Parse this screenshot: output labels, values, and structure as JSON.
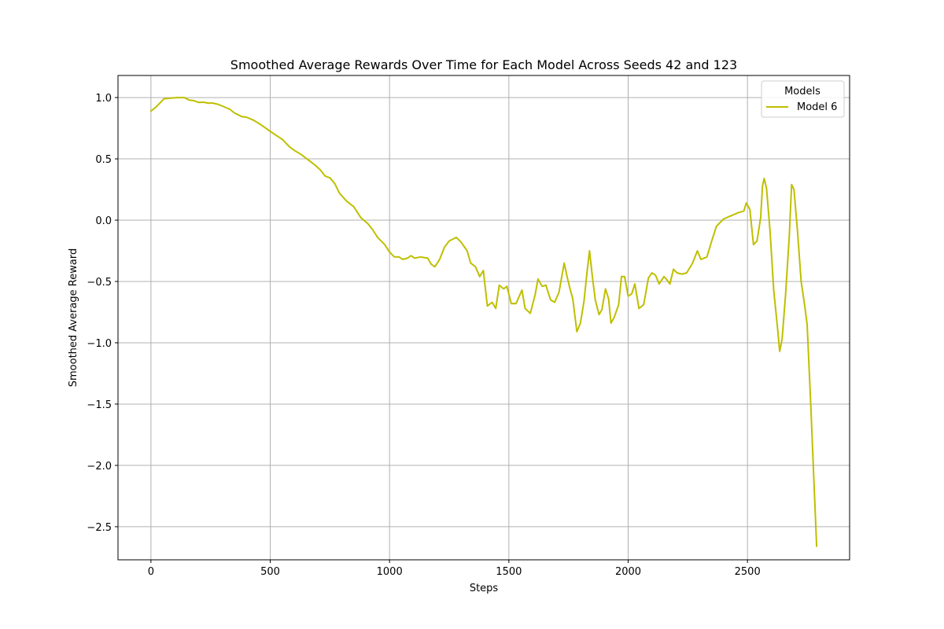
{
  "chart_data": {
    "type": "line",
    "title": "Smoothed Average Rewards Over Time for Each Model Across Seeds 42 and 123",
    "xlabel": "Steps",
    "ylabel": "Smoothed Average Reward",
    "xlim": [
      -138,
      2928
    ],
    "ylim": [
      -2.77,
      1.18
    ],
    "xticks": [
      0,
      500,
      1000,
      1500,
      2000,
      2500
    ],
    "xtick_labels": [
      "0",
      "500",
      "1000",
      "1500",
      "2000",
      "2500"
    ],
    "yticks": [
      1.0,
      0.5,
      0.0,
      -0.5,
      -1.0,
      -1.5,
      -2.0,
      -2.5
    ],
    "ytick_labels": [
      "1.0",
      "0.5",
      "0.0",
      "−0.5",
      "−1.0",
      "−1.5",
      "−2.0",
      "−2.5"
    ],
    "grid": true,
    "legend": {
      "title": "Models",
      "placement": "top-right"
    },
    "series": [
      {
        "name": "Model 6",
        "color": "#bfbf00",
        "points": [
          [
            0,
            0.89
          ],
          [
            20,
            0.92
          ],
          [
            40,
            0.96
          ],
          [
            55,
            0.99
          ],
          [
            80,
            0.995
          ],
          [
            110,
            1.0
          ],
          [
            140,
            1.0
          ],
          [
            160,
            0.98
          ],
          [
            180,
            0.975
          ],
          [
            200,
            0.96
          ],
          [
            220,
            0.962
          ],
          [
            240,
            0.955
          ],
          [
            260,
            0.955
          ],
          [
            280,
            0.945
          ],
          [
            300,
            0.93
          ],
          [
            330,
            0.905
          ],
          [
            350,
            0.875
          ],
          [
            380,
            0.845
          ],
          [
            400,
            0.84
          ],
          [
            430,
            0.815
          ],
          [
            460,
            0.78
          ],
          [
            500,
            0.725
          ],
          [
            530,
            0.685
          ],
          [
            550,
            0.66
          ],
          [
            580,
            0.6
          ],
          [
            600,
            0.57
          ],
          [
            630,
            0.535
          ],
          [
            660,
            0.49
          ],
          [
            690,
            0.445
          ],
          [
            710,
            0.41
          ],
          [
            730,
            0.36
          ],
          [
            750,
            0.345
          ],
          [
            770,
            0.3
          ],
          [
            790,
            0.22
          ],
          [
            820,
            0.155
          ],
          [
            850,
            0.11
          ],
          [
            880,
            0.02
          ],
          [
            910,
            -0.03
          ],
          [
            930,
            -0.08
          ],
          [
            950,
            -0.14
          ],
          [
            980,
            -0.2
          ],
          [
            1000,
            -0.26
          ],
          [
            1020,
            -0.3
          ],
          [
            1040,
            -0.3
          ],
          [
            1055,
            -0.32
          ],
          [
            1075,
            -0.31
          ],
          [
            1090,
            -0.29
          ],
          [
            1105,
            -0.31
          ],
          [
            1130,
            -0.3
          ],
          [
            1160,
            -0.31
          ],
          [
            1175,
            -0.36
          ],
          [
            1190,
            -0.38
          ],
          [
            1210,
            -0.32
          ],
          [
            1230,
            -0.22
          ],
          [
            1250,
            -0.17
          ],
          [
            1280,
            -0.14
          ],
          [
            1300,
            -0.18
          ],
          [
            1325,
            -0.25
          ],
          [
            1340,
            -0.35
          ],
          [
            1360,
            -0.38
          ],
          [
            1378,
            -0.46
          ],
          [
            1393,
            -0.41
          ],
          [
            1410,
            -0.7
          ],
          [
            1430,
            -0.67
          ],
          [
            1445,
            -0.72
          ],
          [
            1460,
            -0.53
          ],
          [
            1478,
            -0.56
          ],
          [
            1492,
            -0.54
          ],
          [
            1510,
            -0.68
          ],
          [
            1530,
            -0.68
          ],
          [
            1555,
            -0.57
          ],
          [
            1568,
            -0.72
          ],
          [
            1590,
            -0.76
          ],
          [
            1610,
            -0.61
          ],
          [
            1622,
            -0.48
          ],
          [
            1640,
            -0.54
          ],
          [
            1655,
            -0.53
          ],
          [
            1675,
            -0.65
          ],
          [
            1692,
            -0.67
          ],
          [
            1710,
            -0.59
          ],
          [
            1732,
            -0.35
          ],
          [
            1745,
            -0.47
          ],
          [
            1755,
            -0.55
          ],
          [
            1768,
            -0.64
          ],
          [
            1785,
            -0.91
          ],
          [
            1800,
            -0.84
          ],
          [
            1815,
            -0.66
          ],
          [
            1828,
            -0.42
          ],
          [
            1838,
            -0.25
          ],
          [
            1850,
            -0.46
          ],
          [
            1862,
            -0.65
          ],
          [
            1878,
            -0.77
          ],
          [
            1890,
            -0.73
          ],
          [
            1905,
            -0.56
          ],
          [
            1918,
            -0.64
          ],
          [
            1928,
            -0.84
          ],
          [
            1942,
            -0.79
          ],
          [
            1960,
            -0.69
          ],
          [
            1972,
            -0.46
          ],
          [
            1985,
            -0.46
          ],
          [
            2000,
            -0.62
          ],
          [
            2015,
            -0.6
          ],
          [
            2028,
            -0.52
          ],
          [
            2045,
            -0.72
          ],
          [
            2065,
            -0.69
          ],
          [
            2085,
            -0.47
          ],
          [
            2100,
            -0.43
          ],
          [
            2115,
            -0.45
          ],
          [
            2130,
            -0.52
          ],
          [
            2150,
            -0.46
          ],
          [
            2160,
            -0.48
          ],
          [
            2175,
            -0.52
          ],
          [
            2190,
            -0.4
          ],
          [
            2205,
            -0.43
          ],
          [
            2225,
            -0.44
          ],
          [
            2245,
            -0.43
          ],
          [
            2270,
            -0.35
          ],
          [
            2290,
            -0.25
          ],
          [
            2305,
            -0.32
          ],
          [
            2330,
            -0.3
          ],
          [
            2350,
            -0.17
          ],
          [
            2370,
            -0.05
          ],
          [
            2400,
            0.01
          ],
          [
            2430,
            0.035
          ],
          [
            2460,
            0.06
          ],
          [
            2485,
            0.075
          ],
          [
            2495,
            0.14
          ],
          [
            2510,
            0.09
          ],
          [
            2525,
            -0.2
          ],
          [
            2540,
            -0.17
          ],
          [
            2555,
            0.02
          ],
          [
            2563,
            0.28
          ],
          [
            2570,
            0.34
          ],
          [
            2580,
            0.26
          ],
          [
            2595,
            -0.1
          ],
          [
            2610,
            -0.57
          ],
          [
            2625,
            -0.86
          ],
          [
            2635,
            -1.07
          ],
          [
            2645,
            -0.97
          ],
          [
            2660,
            -0.6
          ],
          [
            2675,
            -0.13
          ],
          [
            2685,
            0.29
          ],
          [
            2695,
            0.25
          ],
          [
            2710,
            -0.1
          ],
          [
            2725,
            -0.5
          ],
          [
            2740,
            -0.7
          ],
          [
            2750,
            -0.85
          ],
          [
            2765,
            -1.5
          ],
          [
            2780,
            -2.2
          ],
          [
            2790,
            -2.66
          ]
        ]
      }
    ]
  }
}
